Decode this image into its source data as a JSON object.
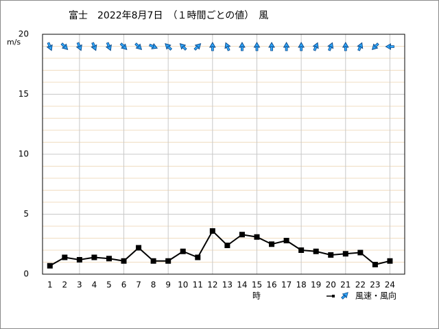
{
  "chart_data": {
    "type": "line",
    "title": "富士　2022年8月7日　（１時間ごとの値）　風",
    "y_label": "m/s",
    "x_label": "時",
    "x": [
      1,
      2,
      3,
      4,
      5,
      6,
      7,
      8,
      9,
      10,
      11,
      12,
      13,
      14,
      15,
      16,
      17,
      18,
      19,
      20,
      21,
      22,
      23,
      24
    ],
    "xlim": [
      0.5,
      25
    ],
    "xticks": [
      1,
      2,
      3,
      4,
      5,
      6,
      7,
      8,
      9,
      10,
      11,
      12,
      13,
      14,
      15,
      16,
      17,
      18,
      19,
      20,
      21,
      22,
      23,
      24
    ],
    "ylim": [
      0,
      20
    ],
    "yticks": [
      0,
      5,
      10,
      15,
      20
    ],
    "grid": true,
    "series": [
      {
        "name": "風速・風向",
        "color": "#000000",
        "values": [
          0.7,
          1.4,
          1.2,
          1.4,
          1.3,
          1.1,
          2.2,
          1.1,
          1.1,
          1.9,
          1.4,
          3.6,
          2.4,
          3.3,
          3.1,
          2.5,
          2.8,
          2.0,
          1.9,
          1.6,
          1.7,
          1.8,
          0.8,
          1.1
        ],
        "directions": [
          337.5,
          315,
          337.5,
          337.5,
          337.5,
          315,
          315,
          292.5,
          135,
          135,
          225,
          180,
          157.5,
          180,
          180,
          180,
          180,
          180,
          202.5,
          202.5,
          180,
          202.5,
          45,
          90
        ],
        "arrow_color": "#33aaff"
      }
    ]
  }
}
